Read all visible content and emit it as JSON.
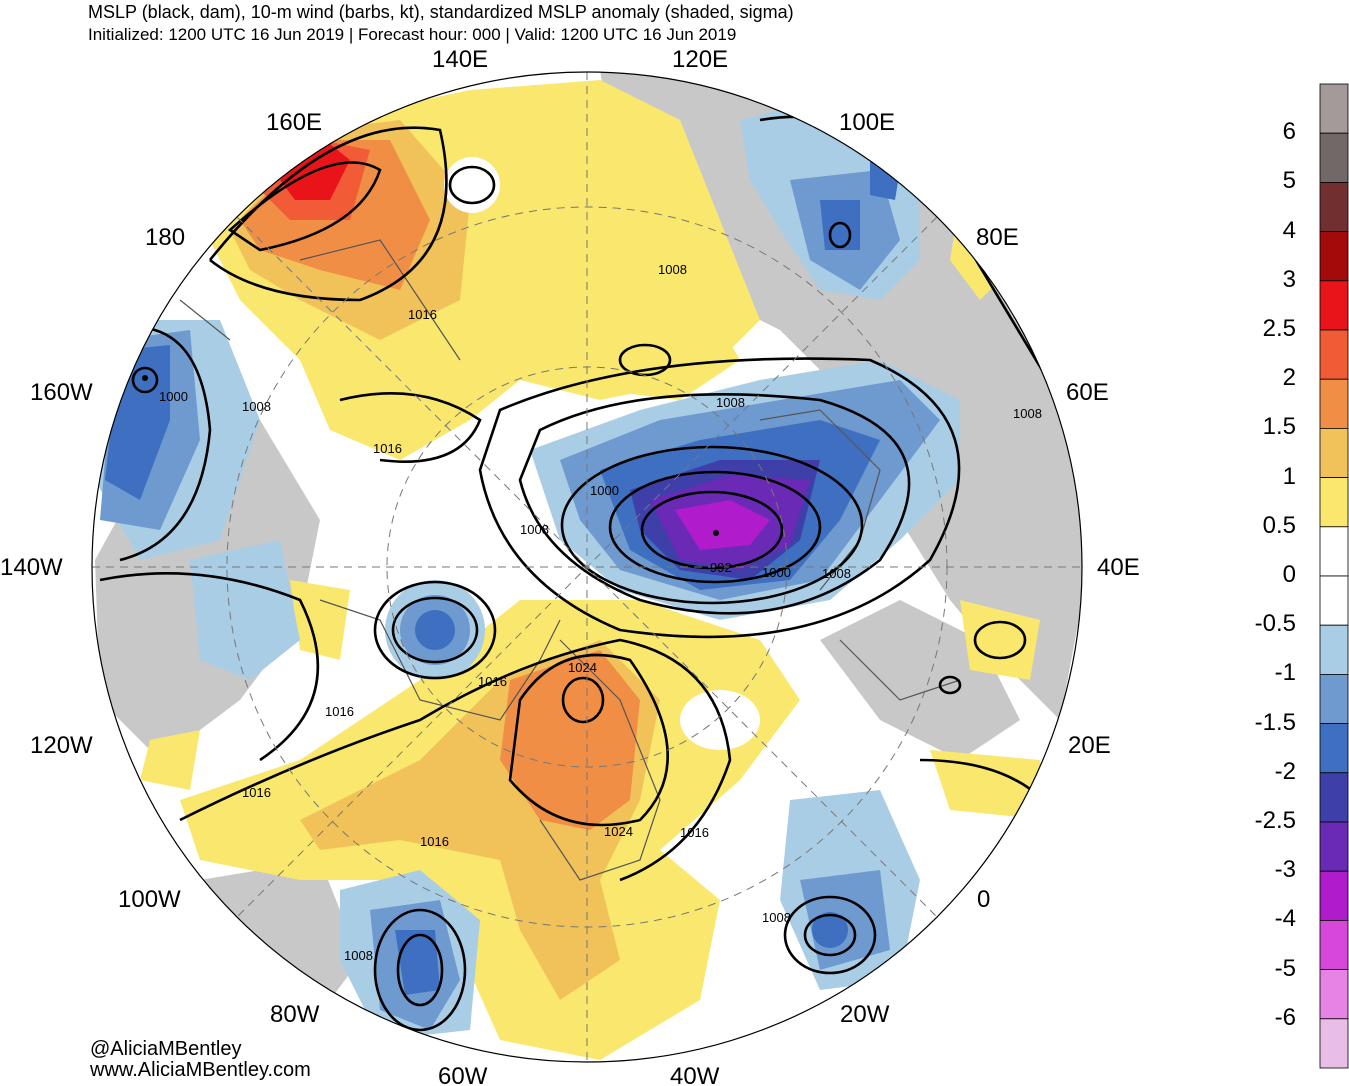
{
  "header": {
    "title": "MSLP (black, dam), 10-m wind (barbs, kt), standardized MSLP anomaly (shaded, sigma)",
    "subtitle": "Initialized: 1200 UTC 16 Jun 2019 | Forecast hour: 000 | Valid: 1200 UTC 16 Jun 2019"
  },
  "longitudes": {
    "l140E": "140E",
    "l120E": "120E",
    "l100E": "100E",
    "l80E": "80E",
    "l60E": "60E",
    "l40E": "40E",
    "l20E": "20E",
    "l0": "0",
    "l20W": "20W",
    "l40W": "40W",
    "l60W": "60W",
    "l80W": "80W",
    "l100W": "100W",
    "l120W": "120W",
    "l140W": "140W",
    "l160W": "160W",
    "l180": "180",
    "l160E": "160E"
  },
  "isobars": {
    "i1": "1016",
    "i2": "1008",
    "i3": "1008",
    "i4": "1000",
    "i5": "1008",
    "i6": "1000",
    "i7": "1016",
    "i8": "1008",
    "i9": "992",
    "i10": "1000",
    "i11": "1008",
    "i12": "1008",
    "i13": "1016",
    "i14": "1024",
    "i15": "1016",
    "i16": "1016",
    "i17": "1016",
    "i18": "1024",
    "i19": "1016",
    "i20": "1008",
    "i21": "1008"
  },
  "colorbar": {
    "labels": [
      "6",
      "5",
      "4",
      "3",
      "2.5",
      "2",
      "1.5",
      "1",
      "0.5",
      "0",
      "-0.5",
      "-1",
      "-1.5",
      "-2",
      "-2.5",
      "-3",
      "-4",
      "-5",
      "-6"
    ],
    "colors": [
      "#a39a99",
      "#716968",
      "#722f2f",
      "#a30b0b",
      "#e8141a",
      "#f15c36",
      "#f08e46",
      "#f2c25a",
      "#fae76e",
      "#ffffff",
      "#ffffff",
      "#aacde6",
      "#6e9ad0",
      "#3e6fc0",
      "#3e3fa8",
      "#6a2ab6",
      "#b01bcc",
      "#d747d9",
      "#e783e4",
      "#e8bde6"
    ]
  },
  "credits": {
    "handle": "@AliciaMBentley",
    "site": "www.AliciaMBentley.com"
  }
}
